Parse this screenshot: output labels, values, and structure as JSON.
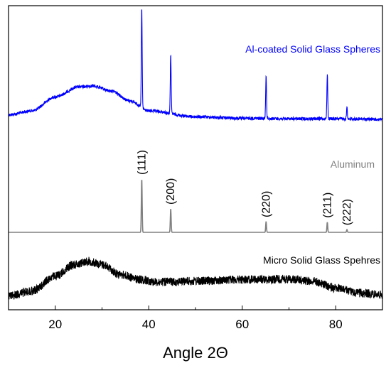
{
  "chart_data": {
    "type": "line",
    "title": "",
    "xlabel": "Angle 2Θ",
    "ylabel": "",
    "xlim": [
      10,
      90
    ],
    "x_ticks": [
      20,
      40,
      60,
      80
    ],
    "grid": false,
    "series": [
      {
        "name": "Al-coated Solid Glass Spheres",
        "color": "#0000ff",
        "kind": "noisy-pattern",
        "baseline_points": [
          [
            10,
            0.06
          ],
          [
            15,
            0.1
          ],
          [
            20,
            0.24
          ],
          [
            25,
            0.34
          ],
          [
            28,
            0.35
          ],
          [
            32,
            0.3
          ],
          [
            36,
            0.2
          ],
          [
            40,
            0.1
          ],
          [
            50,
            0.04
          ],
          [
            60,
            0.025
          ],
          [
            70,
            0.02
          ],
          [
            80,
            0.02
          ],
          [
            90,
            0.015
          ]
        ],
        "peaks": [
          {
            "x": 38.5,
            "height": 1.0
          },
          {
            "x": 44.7,
            "height": 0.6
          },
          {
            "x": 65.1,
            "height": 0.43
          },
          {
            "x": 78.2,
            "height": 0.45
          },
          {
            "x": 82.4,
            "height": 0.12
          }
        ]
      },
      {
        "name": "Aluminum",
        "color": "#808080",
        "kind": "reference-pattern",
        "peaks": [
          {
            "x": 38.5,
            "height": 1.0,
            "hkl": "(111)"
          },
          {
            "x": 44.7,
            "height": 0.44,
            "hkl": "(200)"
          },
          {
            "x": 65.1,
            "height": 0.2,
            "hkl": "(220)"
          },
          {
            "x": 78.2,
            "height": 0.19,
            "hkl": "(211)"
          },
          {
            "x": 82.4,
            "height": 0.05,
            "hkl": "(222)"
          }
        ]
      },
      {
        "name": "Micro Solid Glass Spehres",
        "color": "#000000",
        "kind": "noisy-pattern",
        "baseline_points": [
          [
            10,
            0.12
          ],
          [
            15,
            0.22
          ],
          [
            20,
            0.52
          ],
          [
            24,
            0.75
          ],
          [
            27,
            0.82
          ],
          [
            30,
            0.75
          ],
          [
            34,
            0.55
          ],
          [
            38,
            0.45
          ],
          [
            42,
            0.4
          ],
          [
            50,
            0.42
          ],
          [
            60,
            0.45
          ],
          [
            70,
            0.46
          ],
          [
            75,
            0.42
          ],
          [
            80,
            0.28
          ],
          [
            85,
            0.18
          ],
          [
            90,
            0.14
          ]
        ],
        "peaks": []
      }
    ]
  }
}
